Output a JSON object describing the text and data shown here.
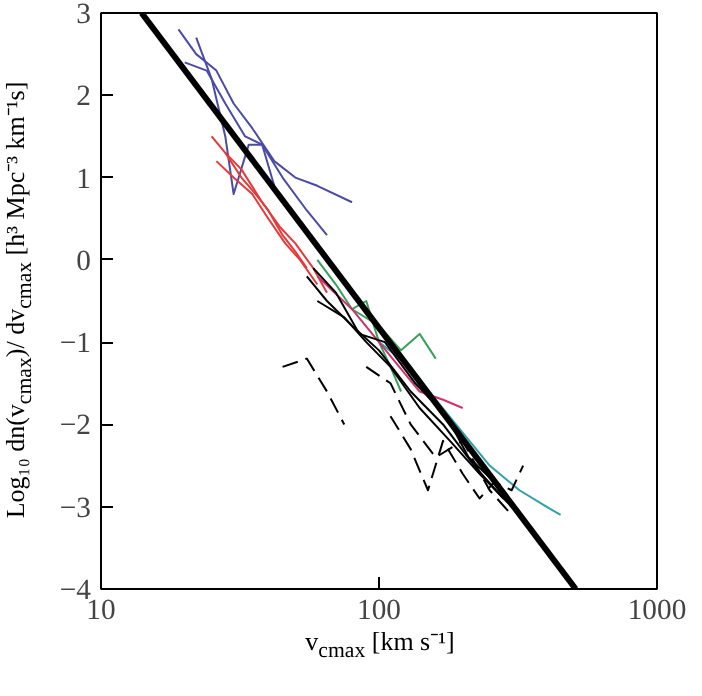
{
  "chart_data": {
    "type": "line",
    "xlabel": "v$_{cmax}$ [km s⁻¹]",
    "ylabel": "Log₁₀ dn(v$_{cmax}$)/ dv$_{cmax}$ [h³ Mpc⁻³ km⁻¹s]",
    "log": "x",
    "xlim": [
      10,
      1000
    ],
    "ylim": [
      -4,
      3
    ],
    "xticks": [
      10,
      100,
      1000
    ],
    "yticks": [
      -4,
      -3,
      -2,
      -1,
      0,
      1,
      2,
      3
    ],
    "grid": false,
    "series": [
      {
        "color": "#4a4aa8",
        "x": [
          19,
          22,
          26,
          30,
          35,
          42,
          50,
          60,
          80
        ],
        "values": [
          2.8,
          2.5,
          2.3,
          1.9,
          1.6,
          1.2,
          1.0,
          0.9,
          0.7
        ]
      },
      {
        "color": "#4a4aa8",
        "x": [
          20,
          24,
          28,
          33,
          38,
          45,
          55,
          65
        ],
        "values": [
          2.4,
          2.3,
          1.9,
          1.5,
          1.4,
          1.0,
          0.6,
          0.3
        ]
      },
      {
        "color": "#4a4aa8",
        "x": [
          22,
          25,
          28,
          30,
          34,
          38,
          42
        ],
        "values": [
          2.7,
          2.2,
          1.5,
          0.8,
          1.4,
          1.4,
          0.9
        ]
      },
      {
        "color": "#e83838",
        "x": [
          25,
          28,
          32,
          36,
          40,
          45,
          50,
          55
        ],
        "values": [
          1.5,
          1.3,
          1.0,
          0.8,
          0.6,
          0.3,
          0.1,
          -0.1
        ]
      },
      {
        "color": "#e83838",
        "x": [
          26,
          30,
          35,
          40,
          46,
          52,
          60
        ],
        "values": [
          1.2,
          1.0,
          0.8,
          0.5,
          0.2,
          0.0,
          -0.3
        ]
      },
      {
        "color": "#e83838",
        "x": [
          28,
          32,
          38,
          44,
          50,
          58,
          65
        ],
        "values": [
          1.3,
          1.1,
          0.7,
          0.4,
          0.2,
          -0.1,
          -0.4
        ]
      },
      {
        "color": "#38a058",
        "x": [
          60,
          70,
          80,
          90,
          100,
          110,
          120
        ],
        "values": [
          0.0,
          -0.3,
          -0.6,
          -0.5,
          -1.0,
          -1.3,
          -1.6
        ]
      },
      {
        "color": "#38a058",
        "x": [
          80,
          100,
          120,
          140,
          160
        ],
        "values": [
          -0.6,
          -0.8,
          -1.1,
          -0.9,
          -1.2
        ]
      },
      {
        "color": "#30a0a8",
        "x": [
          100,
          130,
          160,
          200,
          250,
          320,
          400,
          450
        ],
        "values": [
          -1.0,
          -1.3,
          -1.7,
          -2.1,
          -2.5,
          -2.8,
          -3.0,
          -3.1
        ]
      },
      {
        "color": "#d03070",
        "x": [
          60,
          80,
          100,
          140,
          170,
          200
        ],
        "values": [
          -0.2,
          -0.6,
          -1.0,
          -1.6,
          -1.7,
          -1.8
        ]
      },
      {
        "color": "#000000",
        "x": [
          55,
          65,
          80,
          100,
          130,
          170,
          220,
          280
        ],
        "values": [
          -0.2,
          -0.5,
          -0.8,
          -1.1,
          -1.6,
          -2.0,
          -2.5,
          -2.9
        ]
      },
      {
        "color": "#000000",
        "x": [
          60,
          75,
          90,
          110,
          140,
          180,
          230,
          300
        ],
        "values": [
          -0.5,
          -0.7,
          -1.0,
          -1.3,
          -1.8,
          -2.2,
          -2.6,
          -3.0
        ]
      },
      {
        "color": "#000000",
        "x": [
          58,
          70,
          85,
          105,
          135,
          175,
          210,
          260
        ],
        "values": [
          -0.1,
          -0.4,
          -0.9,
          -1.0,
          -1.5,
          -1.9,
          -2.4,
          -2.7
        ]
      },
      {
        "color": "#000000",
        "line_style": "dashed",
        "x": [
          45,
          55,
          65,
          75
        ],
        "values": [
          -1.3,
          -1.2,
          -1.6,
          -2.0
        ]
      },
      {
        "color": "#000000",
        "line_style": "dashed",
        "x": [
          110,
          130,
          150,
          170,
          200,
          230,
          260,
          300,
          330
        ],
        "values": [
          -1.9,
          -2.3,
          -2.8,
          -2.2,
          -2.6,
          -2.9,
          -2.7,
          -2.8,
          -2.5
        ]
      },
      {
        "color": "#000000",
        "line_style": "dashed",
        "x": [
          90,
          110,
          130,
          160,
          200,
          250,
          300
        ],
        "values": [
          -1.3,
          -1.5,
          -2.0,
          -2.4,
          -2.2,
          -2.8,
          -3.1
        ]
      },
      {
        "color": "#000000",
        "x": [
          14,
          510
        ],
        "values": [
          3,
          -4
        ]
      }
    ]
  }
}
